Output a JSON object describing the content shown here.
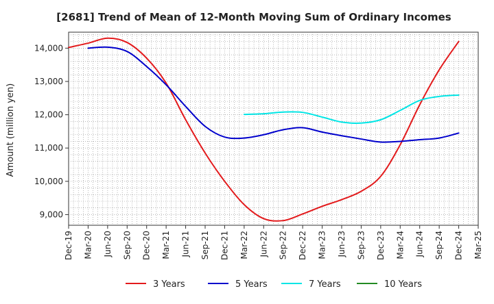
{
  "chart_data": {
    "type": "line",
    "title": "[2681]  Trend of Mean of 12-Month Moving Sum of Ordinary Incomes",
    "xlabel": "",
    "ylabel": "Amount (million yen)",
    "x_ticks": [
      "Dec-19",
      "Mar-20",
      "Jun-20",
      "Sep-20",
      "Dec-20",
      "Mar-21",
      "Jun-21",
      "Sep-21",
      "Dec-21",
      "Mar-22",
      "Jun-22",
      "Sep-22",
      "Dec-22",
      "Mar-23",
      "Jun-23",
      "Sep-23",
      "Dec-23",
      "Mar-24",
      "Jun-24",
      "Sep-24",
      "Dec-24",
      "Mar-25"
    ],
    "x_range": [
      0,
      21
    ],
    "y_ticks": [
      9000,
      10000,
      11000,
      12000,
      13000,
      14000
    ],
    "y_tick_labels": [
      "9,000",
      "10,000",
      "11,000",
      "12,000",
      "13,000",
      "14,000"
    ],
    "ylim": [
      8680,
      14480
    ],
    "grid": true,
    "legend_position": "bottom",
    "series": [
      {
        "name": "3 Years",
        "color": "#e31a1c",
        "x": [
          0,
          1,
          2,
          3,
          4,
          5,
          6,
          7,
          8,
          9,
          10,
          11,
          12,
          13,
          14,
          15,
          16,
          17,
          18,
          19,
          20
        ],
        "values": [
          14020,
          14150,
          14300,
          14170,
          13700,
          12950,
          11850,
          10850,
          10000,
          9300,
          8880,
          8820,
          9020,
          9250,
          9450,
          9700,
          10150,
          11100,
          12300,
          13350,
          14200
        ]
      },
      {
        "name": "5 Years",
        "color": "#0000cc",
        "x": [
          1,
          2,
          3,
          4,
          5,
          6,
          7,
          8,
          9,
          10,
          11,
          12,
          13,
          14,
          15,
          16,
          17,
          18,
          19,
          20
        ],
        "values": [
          14000,
          14030,
          13900,
          13450,
          12900,
          12250,
          11650,
          11330,
          11300,
          11400,
          11550,
          11610,
          11480,
          11370,
          11270,
          11180,
          11200,
          11250,
          11300,
          11450
        ]
      },
      {
        "name": "7 Years",
        "color": "#00e5e5",
        "x": [
          9,
          10,
          11,
          12,
          13,
          14,
          15,
          16,
          17,
          18,
          19,
          20
        ],
        "values": [
          12010,
          12030,
          12080,
          12070,
          11930,
          11780,
          11750,
          11850,
          12130,
          12430,
          12550,
          12590
        ]
      },
      {
        "name": "10 Years",
        "color": "#228b22",
        "x": [],
        "values": []
      }
    ]
  }
}
